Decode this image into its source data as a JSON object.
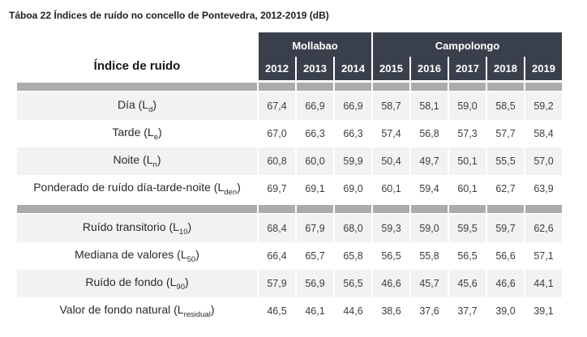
{
  "title": "Táboa 22 Índices de ruído no concello de Pontevedra, 2012-2019 (dB)",
  "table": {
    "row_header": "Índice de ruido",
    "groups": [
      {
        "label": "Mollabao",
        "years": [
          "2012",
          "2013",
          "2014"
        ]
      },
      {
        "label": "Campolongo",
        "years": [
          "2015",
          "2016",
          "2017",
          "2018",
          "2019"
        ]
      }
    ],
    "years": [
      "2012",
      "2013",
      "2014",
      "2015",
      "2016",
      "2017",
      "2018",
      "2019"
    ],
    "rows": [
      {
        "label": "Día (L",
        "sub": "d",
        "label_end": ")",
        "values": [
          "67,4",
          "66,9",
          "66,9",
          "58,7",
          "58,1",
          "59,0",
          "58,5",
          "59,2"
        ]
      },
      {
        "label": "Tarde (L",
        "sub": "e",
        "label_end": ")",
        "values": [
          "67,0",
          "66,3",
          "66,3",
          "57,4",
          "56,8",
          "57,3",
          "57,7",
          "58,4"
        ]
      },
      {
        "label": "Noite (L",
        "sub": "n",
        "label_end": ")",
        "values": [
          "60,8",
          "60,0",
          "59,9",
          "50,4",
          "49,7",
          "50,1",
          "55,5",
          "57,0"
        ]
      },
      {
        "label": "Ponderado de ruído  día-tarde-noite (L",
        "sub": "den",
        "label_end": ")",
        "values": [
          "69,7",
          "69,1",
          "69,0",
          "60,1",
          "59,4",
          "60,1",
          "62,7",
          "63,9"
        ]
      },
      {
        "label": "Ruído transitorio (L",
        "sub": "10",
        "label_end": ")",
        "values": [
          "68,4",
          "67,9",
          "68,0",
          "59,3",
          "59,0",
          "59,5",
          "59,7",
          "62,6"
        ]
      },
      {
        "label": "Mediana de valores (L",
        "sub": "50",
        "label_end": ")",
        "values": [
          "66,4",
          "65,7",
          "65,8",
          "56,5",
          "55,8",
          "56,5",
          "56,6",
          "57,1"
        ]
      },
      {
        "label": "Ruído de fondo (L",
        "sub": "90",
        "label_end": ")",
        "values": [
          "57,9",
          "56,9",
          "56,5",
          "46,6",
          "45,7",
          "45,6",
          "46,6",
          "44,1"
        ]
      },
      {
        "label": "Valor de fondo natural (L",
        "sub": "residual",
        "label_end": ")",
        "values": [
          "46,5",
          "46,1",
          "44,6",
          "38,6",
          "37,6",
          "37,7",
          "39,0",
          "39,1"
        ]
      }
    ]
  },
  "colors": {
    "header_bg": "#3a404b",
    "separator_bar": "#ababab",
    "row_shade": "#f2f2f2",
    "header_text": "#ffffff",
    "body_text": "#3d3d3d"
  },
  "chart_data": {
    "type": "table",
    "title": "Táboa 22 Índices de ruído no concello de Pontevedra, 2012-2019 (dB)",
    "unit": "dB",
    "columns": [
      "Índice de ruido",
      "2012",
      "2013",
      "2014",
      "2015",
      "2016",
      "2017",
      "2018",
      "2019"
    ],
    "column_groups": [
      {
        "label": "Mollabao",
        "years": [
          "2012",
          "2013",
          "2014"
        ]
      },
      {
        "label": "Campolongo",
        "years": [
          "2015",
          "2016",
          "2017",
          "2018",
          "2019"
        ]
      }
    ],
    "rows": [
      [
        "Día (Ld)",
        67.4,
        66.9,
        66.9,
        58.7,
        58.1,
        59.0,
        58.5,
        59.2
      ],
      [
        "Tarde (Le)",
        67.0,
        66.3,
        66.3,
        57.4,
        56.8,
        57.3,
        57.7,
        58.4
      ],
      [
        "Noite (Ln)",
        60.8,
        60.0,
        59.9,
        50.4,
        49.7,
        50.1,
        55.5,
        57.0
      ],
      [
        "Ponderado de ruído día-tarde-noite (Lden)",
        69.7,
        69.1,
        69.0,
        60.1,
        59.4,
        60.1,
        62.7,
        63.9
      ],
      [
        "Ruído transitorio (L10)",
        68.4,
        67.9,
        68.0,
        59.3,
        59.0,
        59.5,
        59.7,
        62.6
      ],
      [
        "Mediana de valores (L50)",
        66.4,
        65.7,
        65.8,
        56.5,
        55.8,
        56.5,
        56.6,
        57.1
      ],
      [
        "Ruído de fondo (L90)",
        57.9,
        56.9,
        56.5,
        46.6,
        45.7,
        45.6,
        46.6,
        44.1
      ],
      [
        "Valor de fondo natural (Lresidual)",
        46.5,
        46.1,
        44.6,
        38.6,
        37.6,
        37.7,
        39.0,
        39.1
      ]
    ]
  }
}
